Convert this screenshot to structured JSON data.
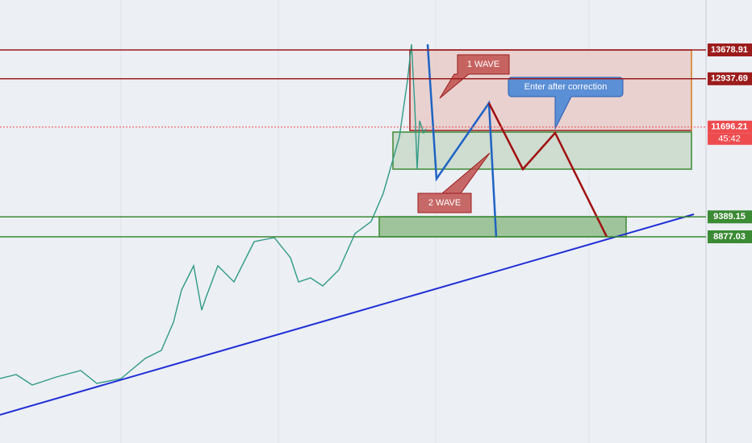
{
  "levels": [
    13678.91,
    12937.69,
    11696.21,
    9389.15,
    8877.03
  ],
  "level_colors": [
    "#9c1c1c",
    "#9c1c1c",
    "#ee4b4f",
    "#3b8a34",
    "#3b8a34"
  ],
  "timer": "45:42",
  "annotations": {
    "wave1": "1 WAVE",
    "wave2": "2 WAVE",
    "entry": "Enter after correction"
  }
}
